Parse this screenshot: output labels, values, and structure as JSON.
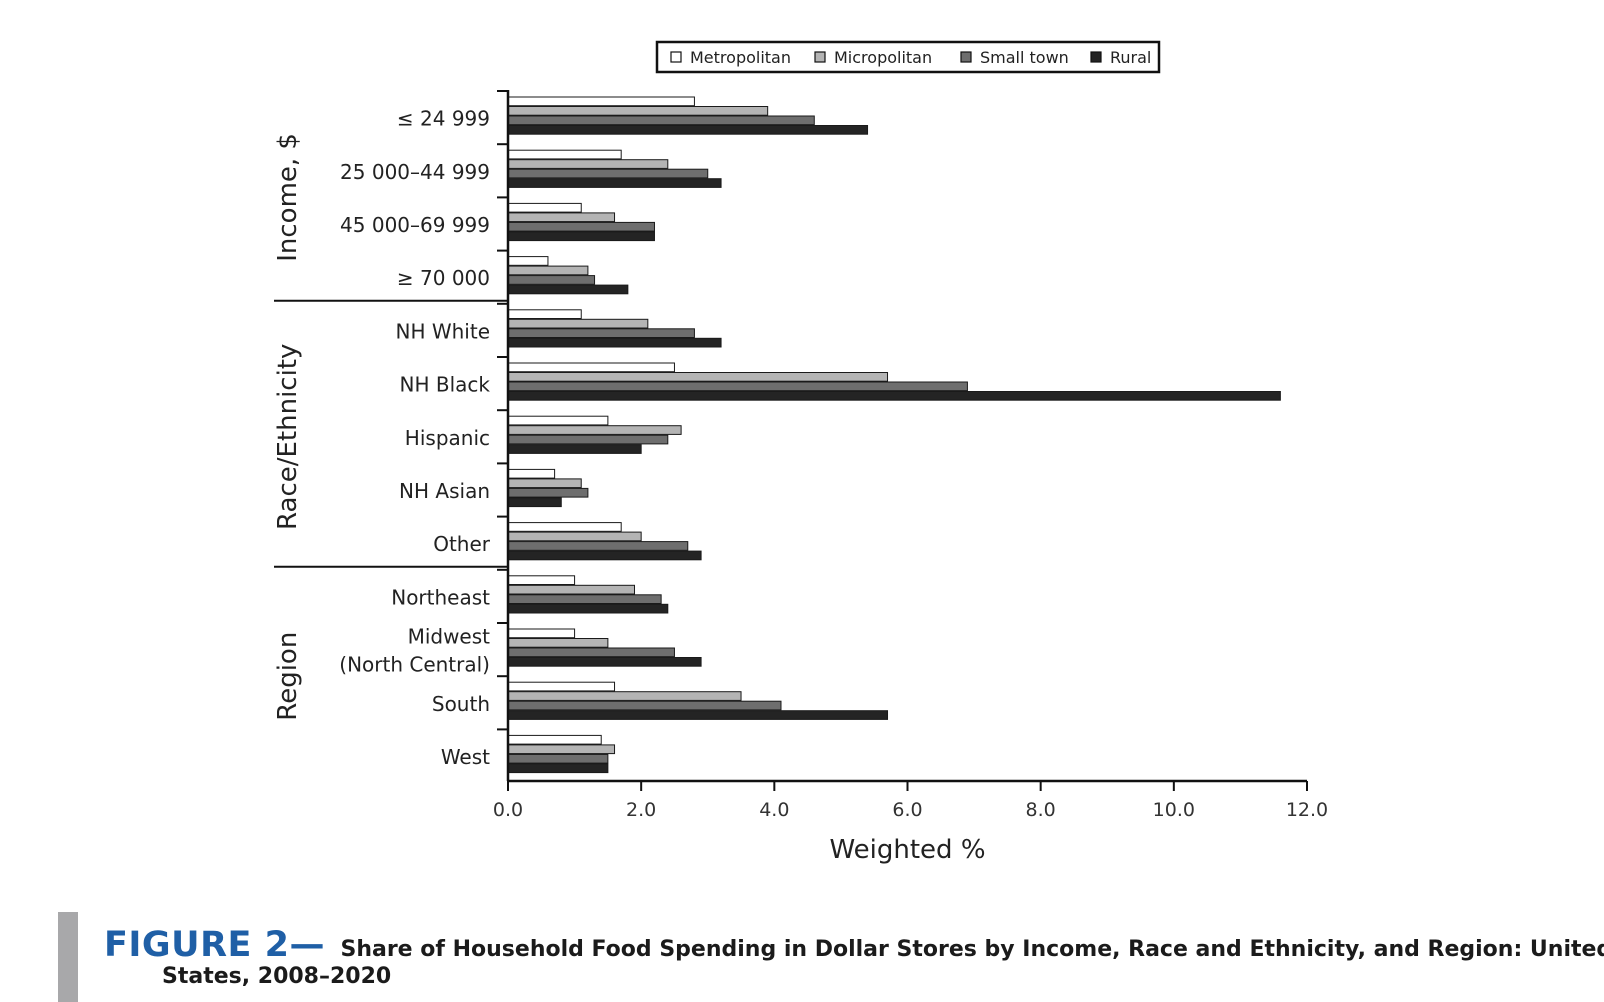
{
  "chart_data": {
    "type": "bar",
    "orientation": "horizontal",
    "categories": [
      "≤ 24 999",
      "25 000–44 999",
      "45 000–69 999",
      "≥ 70 000",
      "NH White",
      "NH Black",
      "Hispanic",
      "NH Asian",
      "Other",
      "Northeast",
      "Midwest\n(North Central)",
      "South",
      "West"
    ],
    "groups": [
      {
        "name": "Income, $",
        "categories": [
          "≤ 24 999",
          "25 000–44 999",
          "45 000–69 999",
          "≥ 70 000"
        ]
      },
      {
        "name": "Race/Ethnicity",
        "categories": [
          "NH White",
          "NH Black",
          "Hispanic",
          "NH Asian",
          "Other"
        ]
      },
      {
        "name": "Region",
        "categories": [
          "Northeast",
          "Midwest\n(North Central)",
          "South",
          "West"
        ]
      }
    ],
    "series": [
      {
        "name": "Metropolitan",
        "color": "#ffffff",
        "values": [
          2.8,
          1.7,
          1.1,
          0.6,
          1.1,
          2.5,
          1.5,
          0.7,
          1.7,
          1.0,
          1.0,
          1.6,
          1.4
        ]
      },
      {
        "name": "Micropolitan",
        "color": "#b4b4b4",
        "values": [
          3.9,
          2.4,
          1.6,
          1.2,
          2.1,
          5.7,
          2.6,
          1.1,
          2.0,
          1.9,
          1.5,
          3.5,
          1.6
        ]
      },
      {
        "name": "Small town",
        "color": "#6e6e6e",
        "values": [
          4.6,
          3.0,
          2.2,
          1.3,
          2.8,
          6.9,
          2.4,
          1.2,
          2.7,
          2.3,
          2.5,
          4.1,
          1.5
        ]
      },
      {
        "name": "Rural",
        "color": "#242424",
        "values": [
          5.4,
          3.2,
          2.2,
          1.8,
          3.2,
          11.6,
          2.0,
          0.8,
          2.9,
          2.4,
          2.9,
          5.7,
          1.5
        ]
      }
    ],
    "xlabel": "Weighted %",
    "xlim": [
      0,
      12
    ],
    "xticks": [
      "0.0",
      "2.0",
      "4.0",
      "6.0",
      "8.0",
      "10.0",
      "12.0"
    ],
    "legend_position": "top",
    "grid": false
  },
  "caption": {
    "label": "FIGURE 2",
    "dash": "—",
    "title_line1": "Share of Household Food Spending in Dollar Stores by Income, Race and Ethnicity, and Region: United",
    "title_line2": "States, 2008–2020"
  }
}
